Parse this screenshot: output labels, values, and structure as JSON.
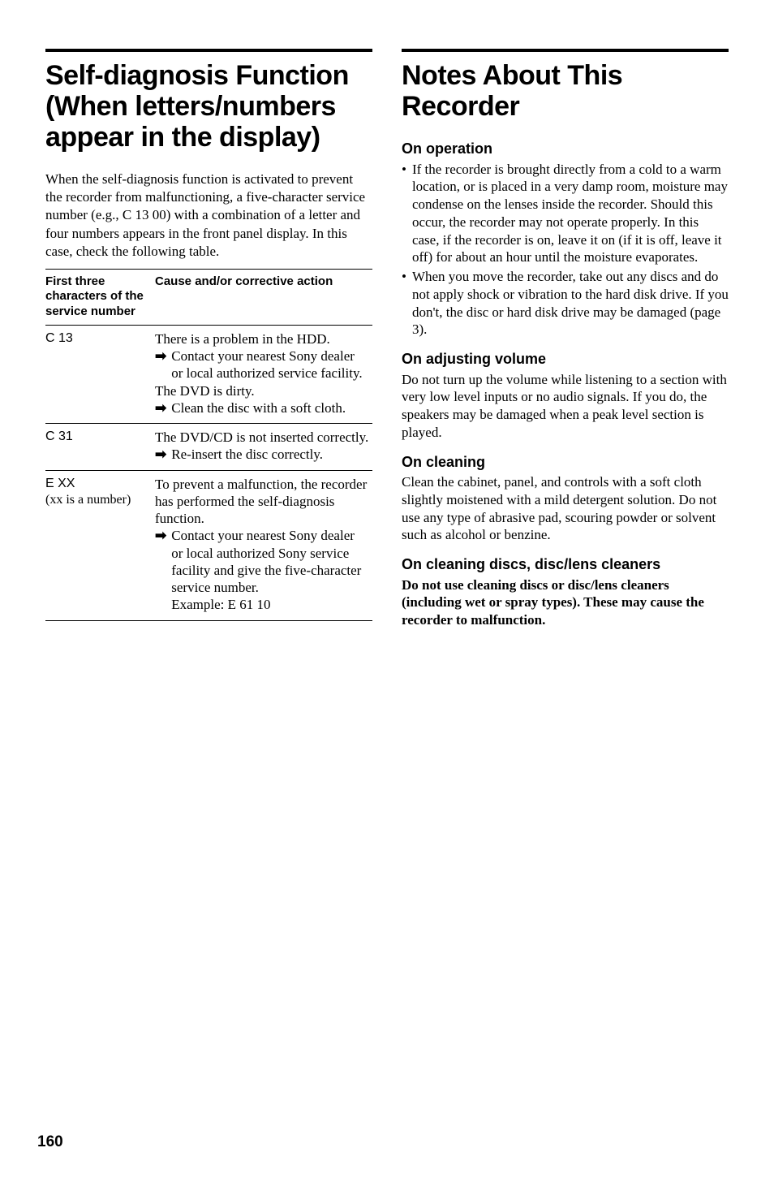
{
  "left": {
    "title": "Self-diagnosis Function (When letters/numbers appear in the display)",
    "intro": "When the self-diagnosis function is activated to prevent the recorder from malfunctioning, a five-character service number (e.g., C 13 00) with a combination of a letter and four numbers appears in the front panel display. In this case, check the following table.",
    "table": {
      "header_col1": "First three characters of the service number",
      "header_col2": "Cause and/or corrective action",
      "rows": {
        "r1": {
          "code": "C 13",
          "line1": "There is a problem in the HDD.",
          "arrow1": "Contact your nearest Sony dealer or local authorized service facility.",
          "line2": "The DVD is dirty.",
          "arrow2": "Clean the disc with a soft cloth."
        },
        "r2": {
          "code": "C 31",
          "line1": "The DVD/CD is not inserted correctly.",
          "arrow1": "Re-insert the disc correctly."
        },
        "r3": {
          "code": "E XX",
          "code_sub": "(xx is a number)",
          "line1": "To prevent a malfunction, the recorder has performed the self-diagnosis function.",
          "arrow1": "Contact your nearest Sony dealer or local authorized Sony service facility and give the five-character service number.",
          "arrow1b": "Example: E 61 10"
        }
      }
    }
  },
  "right": {
    "title": "Notes About This Recorder",
    "s1": {
      "head": "On operation",
      "b1": "If the recorder is brought directly from a cold to a warm location, or is placed in a very damp room, moisture may condense on the lenses inside the recorder. Should this occur, the recorder may not operate properly. In this case, if the recorder is on, leave it on (if it is off, leave it off) for about an hour until the moisture evaporates.",
      "b2": "When you move the recorder, take out any discs and do not apply shock or vibration to the hard disk drive. If you don't, the disc or hard disk drive may be damaged (page 3)."
    },
    "s2": {
      "head": "On adjusting volume",
      "body": "Do not turn up the volume while listening to a section with very low level inputs or no audio signals. If you do, the speakers may be damaged when a peak level section is played."
    },
    "s3": {
      "head": "On cleaning",
      "body": "Clean the cabinet, panel, and controls with a soft cloth slightly moistened with a mild detergent solution. Do not use any type of abrasive pad, scouring powder or solvent such as alcohol or benzine."
    },
    "s4": {
      "head": "On cleaning discs, disc/lens cleaners",
      "body": "Do not use cleaning discs or disc/lens cleaners (including wet or spray types). These may cause the recorder to malfunction."
    }
  },
  "page_number": "160"
}
